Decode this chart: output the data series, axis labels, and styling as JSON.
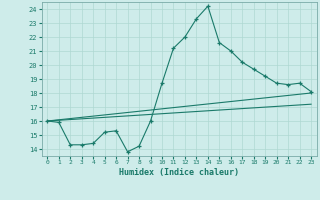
{
  "xlabel": "Humidex (Indice chaleur)",
  "ylabel": "",
  "bg_color": "#ceecea",
  "line_color": "#1a7a6a",
  "grid_color": "#afd8d2",
  "xlim": [
    -0.5,
    23.5
  ],
  "ylim": [
    13.5,
    24.5
  ],
  "yticks": [
    14,
    15,
    16,
    17,
    18,
    19,
    20,
    21,
    22,
    23,
    24
  ],
  "xticks": [
    0,
    1,
    2,
    3,
    4,
    5,
    6,
    7,
    8,
    9,
    10,
    11,
    12,
    13,
    14,
    15,
    16,
    17,
    18,
    19,
    20,
    21,
    22,
    23
  ],
  "main_x": [
    0,
    1,
    2,
    3,
    4,
    5,
    6,
    7,
    8,
    9,
    10,
    11,
    12,
    13,
    14,
    15,
    16,
    17,
    18,
    19,
    20,
    21,
    22,
    23
  ],
  "main_y": [
    16.0,
    15.9,
    14.3,
    14.3,
    14.4,
    15.2,
    15.3,
    13.8,
    14.2,
    16.0,
    18.7,
    21.2,
    22.0,
    23.3,
    24.2,
    21.6,
    21.0,
    20.2,
    19.7,
    19.2,
    18.7,
    18.6,
    18.7,
    18.1
  ],
  "trend1_x": [
    0,
    23
  ],
  "trend1_y": [
    16.0,
    18.0
  ],
  "trend2_x": [
    0,
    23
  ],
  "trend2_y": [
    16.0,
    17.2
  ]
}
